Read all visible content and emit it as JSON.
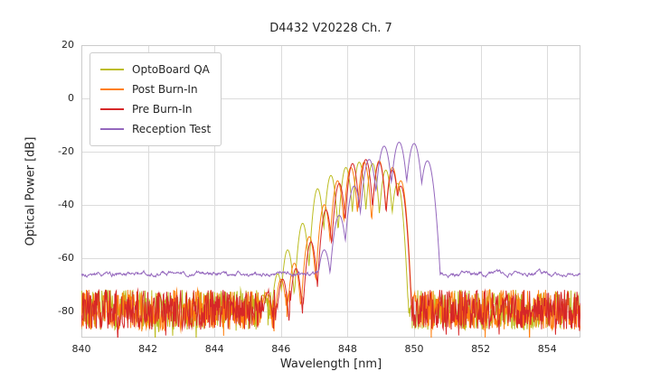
{
  "chart_data": {
    "type": "line",
    "title": "D4432 V20228 Ch. 7",
    "xlabel": "Wavelength [nm]",
    "ylabel": "Optical Power [dB]",
    "xlim": [
      840,
      855
    ],
    "ylim": [
      -90,
      20
    ],
    "xticks": [
      840,
      842,
      844,
      846,
      848,
      850,
      852,
      854
    ],
    "yticks": [
      20,
      0,
      -20,
      -40,
      -60,
      -80
    ],
    "grid": true,
    "legend_position": "upper left",
    "noise_seed": 7,
    "series": [
      {
        "name": "OptoBoard QA",
        "color": "#bcbd22",
        "noise_floor": -79.5,
        "noise_amp": 7.5,
        "smooth": false,
        "mode_width": 0.3,
        "mode_falloff": 40,
        "modes": [
          [
            845.45,
            -74
          ],
          [
            845.9,
            -66
          ],
          [
            846.2,
            -57
          ],
          [
            846.65,
            -47
          ],
          [
            847.1,
            -34
          ],
          [
            847.5,
            -29
          ],
          [
            847.95,
            -26
          ],
          [
            848.35,
            -24
          ],
          [
            848.75,
            -24.5
          ],
          [
            849.15,
            -27
          ],
          [
            849.5,
            -32
          ]
        ]
      },
      {
        "name": "Post Burn-In",
        "color": "#ff7f0e",
        "noise_floor": -79.5,
        "noise_amp": 7.5,
        "smooth": false,
        "mode_width": 0.3,
        "mode_falloff": 40,
        "modes": [
          [
            845.55,
            -73
          ],
          [
            846.0,
            -68
          ],
          [
            846.4,
            -62
          ],
          [
            846.85,
            -52
          ],
          [
            847.3,
            -40
          ],
          [
            847.7,
            -31
          ],
          [
            848.1,
            -26
          ],
          [
            848.5,
            -24
          ],
          [
            848.95,
            -23.5
          ],
          [
            849.35,
            -26
          ],
          [
            849.6,
            -31
          ]
        ]
      },
      {
        "name": "Pre Burn-In",
        "color": "#d62728",
        "noise_floor": -79.5,
        "noise_amp": 7.5,
        "smooth": false,
        "mode_width": 0.3,
        "mode_falloff": 40,
        "modes": [
          [
            845.6,
            -73
          ],
          [
            846.05,
            -68
          ],
          [
            846.45,
            -64
          ],
          [
            846.9,
            -54
          ],
          [
            847.35,
            -42
          ],
          [
            847.75,
            -32
          ],
          [
            848.15,
            -24.5
          ],
          [
            848.55,
            -23
          ],
          [
            848.95,
            -24
          ],
          [
            849.35,
            -27
          ],
          [
            849.6,
            -33
          ]
        ]
      },
      {
        "name": "Reception Test",
        "color": "#9467bd",
        "noise_floor": -66,
        "noise_amp": 0.8,
        "smooth": true,
        "mode_width": 0.3,
        "mode_falloff": 26,
        "modes": [
          [
            847.3,
            -57
          ],
          [
            847.75,
            -44
          ],
          [
            848.2,
            -33
          ],
          [
            848.65,
            -23
          ],
          [
            849.1,
            -18
          ],
          [
            849.55,
            -16.5
          ],
          [
            850.0,
            -17
          ],
          [
            850.4,
            -23.5
          ]
        ]
      }
    ],
    "style": {
      "grid_color": "#dcdcdc",
      "spine_color": "#cccccc",
      "background": "#ffffff",
      "text_color": "#262626"
    }
  }
}
